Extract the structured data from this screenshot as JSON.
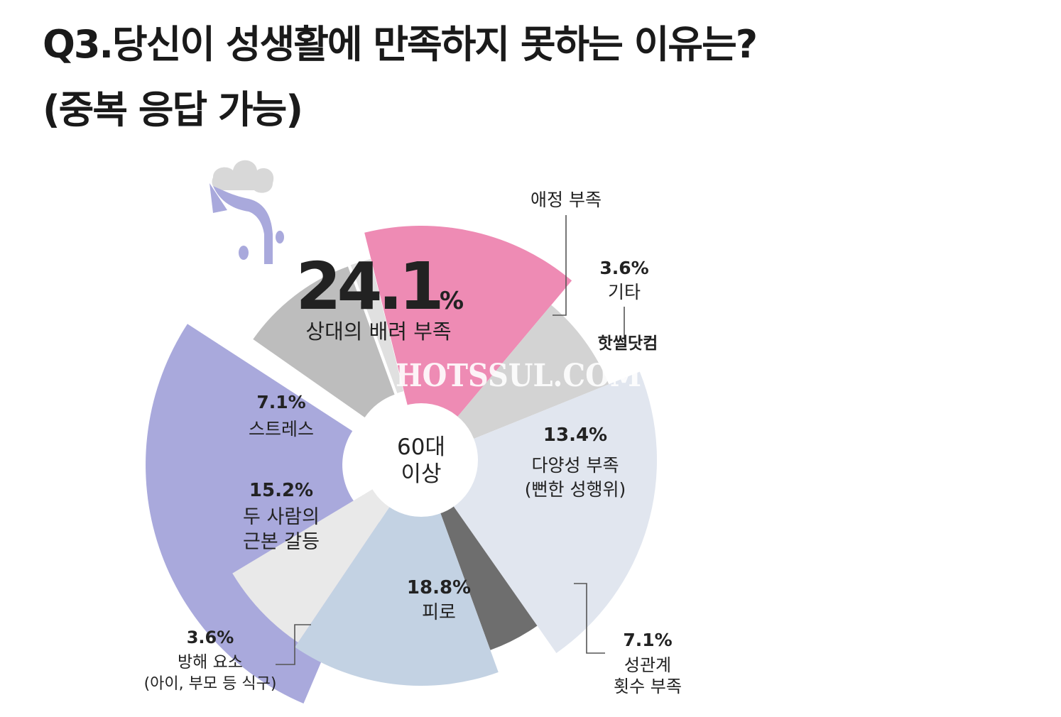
{
  "title_line1": "Q3.당신이 성생활에 만족하지 못하는 이유는?",
  "title_line2": "(중복 응답 가능)",
  "center_label": [
    "60대",
    "이상"
  ],
  "watermark": {
    "korean": "핫썰닷컴",
    "english": "HOTSSUL.COM"
  },
  "chart_data": {
    "type": "pie",
    "subtitle": "60대 이상",
    "slices": [
      {
        "value_label": "24.1%",
        "value": 24.1,
        "label_lines": [
          "상대의 배려 부족"
        ],
        "color": "#a9a9dc"
      },
      {
        "value_label": "",
        "value": 0,
        "label_lines": [
          "애정 부족"
        ],
        "color": "#bdbdbd"
      },
      {
        "value_label": "3.6%",
        "value": 3.6,
        "label_lines": [
          "기타"
        ],
        "color": "#e0e0e0"
      },
      {
        "value_label": "13.4%",
        "value": 13.4,
        "label_lines": [
          "다양성 부족",
          "(뻔한 성행위)"
        ],
        "color": "#ee8bb4"
      },
      {
        "value_label": "7.1%",
        "value": 7.1,
        "label_lines": [
          "성관계",
          "횟수 부족"
        ],
        "color": "#d3d3d3"
      },
      {
        "value_label": "18.8%",
        "value": 18.8,
        "label_lines": [
          "피로"
        ],
        "color": "#e1e6ef"
      },
      {
        "value_label": "3.6%",
        "value": 3.6,
        "label_lines": [
          "방해 요소",
          "(아이, 부모 등 식구)"
        ],
        "color": "#6e6e6e"
      },
      {
        "value_label": "15.2%",
        "value": 15.2,
        "label_lines": [
          "두 사람의",
          "근본 갈등"
        ],
        "color": "#c3d2e3"
      },
      {
        "value_label": "7.1%",
        "value": 7.1,
        "label_lines": [
          "스트레스"
        ],
        "color": "#e9e9e9"
      }
    ]
  }
}
